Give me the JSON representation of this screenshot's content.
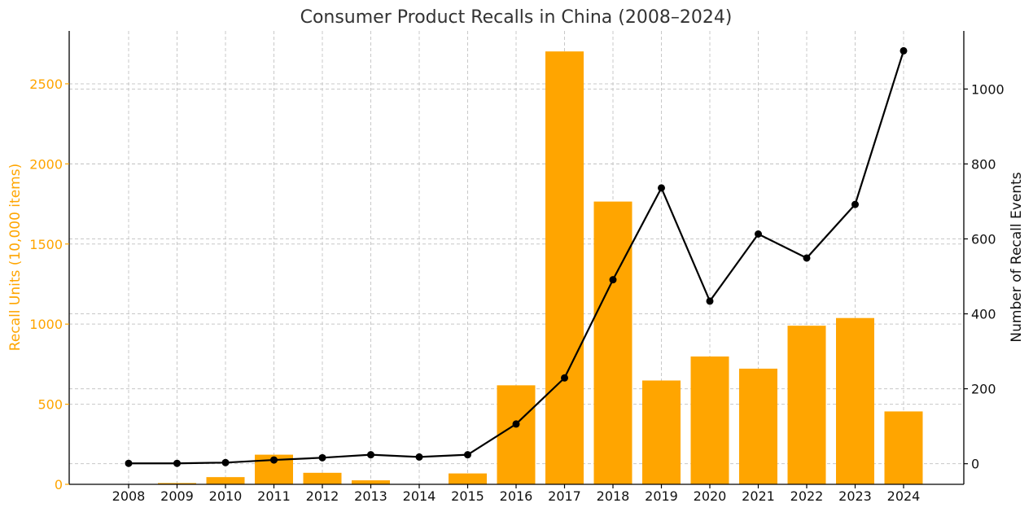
{
  "chart_data": {
    "type": "bar+line",
    "title": "Consumer Product Recalls in China (2008–2024)",
    "categories": [
      "2008",
      "2009",
      "2010",
      "2011",
      "2012",
      "2013",
      "2014",
      "2015",
      "2016",
      "2017",
      "2018",
      "2019",
      "2020",
      "2021",
      "2022",
      "2023",
      "2024"
    ],
    "series": [
      {
        "name": "Recall Units (10,000 items)",
        "type": "bar",
        "axis": "left",
        "color": "#ffa500",
        "values": [
          0,
          8,
          45,
          185,
          72,
          25,
          2,
          68,
          618,
          2702,
          1765,
          648,
          798,
          722,
          990,
          1038,
          455
        ]
      },
      {
        "name": "Number of Recall Events",
        "type": "line",
        "axis": "right",
        "color": "#000000",
        "values": [
          1,
          1,
          3,
          10,
          16,
          24,
          18,
          24,
          106,
          229,
          491,
          736,
          434,
          613,
          549,
          692,
          1102
        ]
      }
    ],
    "ylabel_left": "Recall Units (10,000 items)",
    "ylabel_right": "Number of Recall Events",
    "ylim_left": [
      0,
      2830
    ],
    "yticks_left": [
      0,
      500,
      1000,
      1500,
      2000,
      2500
    ],
    "ylim_right": [
      -55,
      1155
    ],
    "yticks_right": [
      0,
      200,
      400,
      600,
      800,
      1000
    ],
    "grid": true,
    "left_axis_color": "#ffa500"
  }
}
